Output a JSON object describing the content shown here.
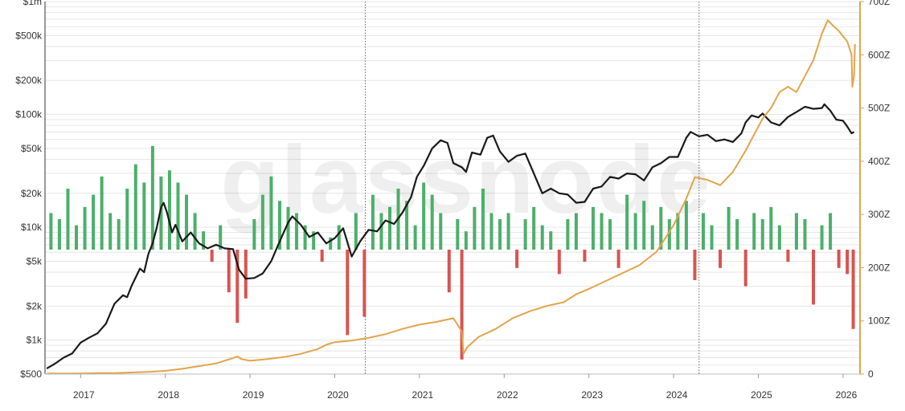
{
  "watermark": "glassnode",
  "colors": {
    "price": "#1a1a1a",
    "supply": "#e2a44a",
    "positive": "#4caf6b",
    "negative": "#d9534f",
    "grid": "#e6e6e6",
    "halving": "#666666"
  },
  "chart_data": {
    "type": "line",
    "y_left": {
      "scale": "log",
      "range": [
        500,
        1000000
      ],
      "ticks": [
        {
          "value": 500,
          "label": "$500"
        },
        {
          "value": 1000,
          "label": "$1k"
        },
        {
          "value": 2000,
          "label": "$2k"
        },
        {
          "value": 5000,
          "label": "$5k"
        },
        {
          "value": 10000,
          "label": "$10k"
        },
        {
          "value": 20000,
          "label": "$20k"
        },
        {
          "value": 50000,
          "label": "$50k"
        },
        {
          "value": 100000,
          "label": "$100k"
        },
        {
          "value": 200000,
          "label": "$200k"
        },
        {
          "value": 500000,
          "label": "$500k"
        },
        {
          "value": 1000000,
          "label": "$1m"
        }
      ]
    },
    "y_right": {
      "scale": "linear",
      "range": [
        0,
        700
      ],
      "ticks": [
        {
          "value": 0,
          "label": "0"
        },
        {
          "value": 100,
          "label": "100Z"
        },
        {
          "value": 200,
          "label": "200Z"
        },
        {
          "value": 300,
          "label": "300Z"
        },
        {
          "value": 400,
          "label": "400Z"
        },
        {
          "value": 500,
          "label": "500Z"
        },
        {
          "value": 600,
          "label": "600Z"
        },
        {
          "value": 700,
          "label": "700Z"
        }
      ]
    },
    "x_axis": {
      "range": [
        2016.58,
        2026.2
      ],
      "ticks": [
        {
          "value": 2017,
          "label": "2017"
        },
        {
          "value": 2018,
          "label": "2018"
        },
        {
          "value": 2019,
          "label": "2019"
        },
        {
          "value": 2020,
          "label": "2020"
        },
        {
          "value": 2021,
          "label": "2021"
        },
        {
          "value": 2022,
          "label": "2022"
        },
        {
          "value": 2023,
          "label": "2023"
        },
        {
          "value": 2024,
          "label": "2024"
        },
        {
          "value": 2025,
          "label": "2025"
        },
        {
          "value": 2026,
          "label": "2026"
        }
      ]
    },
    "halving_lines": [
      2020.36,
      2024.3
    ],
    "series": [
      {
        "key": "price",
        "axis": "left",
        "points": [
          [
            2016.6,
            560
          ],
          [
            2016.7,
            620
          ],
          [
            2016.8,
            700
          ],
          [
            2016.9,
            760
          ],
          [
            2017.0,
            950
          ],
          [
            2017.1,
            1050
          ],
          [
            2017.2,
            1150
          ],
          [
            2017.3,
            1400
          ],
          [
            2017.4,
            2100
          ],
          [
            2017.5,
            2500
          ],
          [
            2017.55,
            2400
          ],
          [
            2017.6,
            3000
          ],
          [
            2017.7,
            4300
          ],
          [
            2017.75,
            4000
          ],
          [
            2017.8,
            5800
          ],
          [
            2017.85,
            7200
          ],
          [
            2017.9,
            10000
          ],
          [
            2017.95,
            15000
          ],
          [
            2017.98,
            16500
          ],
          [
            2018.02,
            13500
          ],
          [
            2018.08,
            9000
          ],
          [
            2018.12,
            10500
          ],
          [
            2018.2,
            7500
          ],
          [
            2018.3,
            9000
          ],
          [
            2018.4,
            7200
          ],
          [
            2018.5,
            6500
          ],
          [
            2018.6,
            7000
          ],
          [
            2018.7,
            6500
          ],
          [
            2018.8,
            6400
          ],
          [
            2018.87,
            4200
          ],
          [
            2018.95,
            3500
          ],
          [
            2019.05,
            3550
          ],
          [
            2019.15,
            3900
          ],
          [
            2019.25,
            5000
          ],
          [
            2019.35,
            7500
          ],
          [
            2019.45,
            11000
          ],
          [
            2019.5,
            12500
          ],
          [
            2019.6,
            10500
          ],
          [
            2019.7,
            8200
          ],
          [
            2019.8,
            9000
          ],
          [
            2019.9,
            7200
          ],
          [
            2020.0,
            8000
          ],
          [
            2020.1,
            9800
          ],
          [
            2020.2,
            5500
          ],
          [
            2020.3,
            7500
          ],
          [
            2020.4,
            9500
          ],
          [
            2020.5,
            9200
          ],
          [
            2020.6,
            11500
          ],
          [
            2020.7,
            10700
          ],
          [
            2020.8,
            13500
          ],
          [
            2020.9,
            18500
          ],
          [
            2020.97,
            28000
          ],
          [
            2021.05,
            35000
          ],
          [
            2021.15,
            50000
          ],
          [
            2021.25,
            59000
          ],
          [
            2021.33,
            56000
          ],
          [
            2021.4,
            37000
          ],
          [
            2021.5,
            34000
          ],
          [
            2021.55,
            31000
          ],
          [
            2021.62,
            46000
          ],
          [
            2021.72,
            44000
          ],
          [
            2021.8,
            62000
          ],
          [
            2021.87,
            65000
          ],
          [
            2021.95,
            47000
          ],
          [
            2022.05,
            38000
          ],
          [
            2022.15,
            43000
          ],
          [
            2022.25,
            45000
          ],
          [
            2022.35,
            30000
          ],
          [
            2022.45,
            20000
          ],
          [
            2022.55,
            22000
          ],
          [
            2022.65,
            20000
          ],
          [
            2022.75,
            19500
          ],
          [
            2022.85,
            16500
          ],
          [
            2022.95,
            16800
          ],
          [
            2023.05,
            22000
          ],
          [
            2023.15,
            23000
          ],
          [
            2023.25,
            28000
          ],
          [
            2023.35,
            27000
          ],
          [
            2023.45,
            30000
          ],
          [
            2023.55,
            29500
          ],
          [
            2023.65,
            26000
          ],
          [
            2023.75,
            34000
          ],
          [
            2023.85,
            37000
          ],
          [
            2023.95,
            42000
          ],
          [
            2024.05,
            42000
          ],
          [
            2024.15,
            62000
          ],
          [
            2024.2,
            70000
          ],
          [
            2024.3,
            64000
          ],
          [
            2024.4,
            66000
          ],
          [
            2024.5,
            58000
          ],
          [
            2024.6,
            60000
          ],
          [
            2024.7,
            57000
          ],
          [
            2024.8,
            68000
          ],
          [
            2024.85,
            85000
          ],
          [
            2024.92,
            98000
          ],
          [
            2025.0,
            94000
          ],
          [
            2025.05,
            102000
          ],
          [
            2025.15,
            85000
          ],
          [
            2025.25,
            80000
          ],
          [
            2025.35,
            95000
          ],
          [
            2025.45,
            105000
          ],
          [
            2025.55,
            117000
          ],
          [
            2025.65,
            112000
          ],
          [
            2025.75,
            114000
          ],
          [
            2025.78,
            123000
          ],
          [
            2025.85,
            108000
          ],
          [
            2025.92,
            90000
          ],
          [
            2026.0,
            88000
          ],
          [
            2026.05,
            78000
          ],
          [
            2026.1,
            68000
          ],
          [
            2026.13,
            70000
          ]
        ]
      },
      {
        "key": "supply",
        "axis": "right",
        "points": [
          [
            2016.6,
            1
          ],
          [
            2016.8,
            1
          ],
          [
            2017.0,
            1
          ],
          [
            2017.2,
            2
          ],
          [
            2017.4,
            2
          ],
          [
            2017.6,
            3
          ],
          [
            2017.8,
            4
          ],
          [
            2018.0,
            6
          ],
          [
            2018.2,
            10
          ],
          [
            2018.4,
            15
          ],
          [
            2018.6,
            20
          ],
          [
            2018.8,
            30
          ],
          [
            2018.85,
            33
          ],
          [
            2018.9,
            28
          ],
          [
            2019.0,
            25
          ],
          [
            2019.2,
            28
          ],
          [
            2019.4,
            32
          ],
          [
            2019.6,
            38
          ],
          [
            2019.8,
            47
          ],
          [
            2019.9,
            55
          ],
          [
            2020.0,
            60
          ],
          [
            2020.2,
            63
          ],
          [
            2020.4,
            68
          ],
          [
            2020.6,
            75
          ],
          [
            2020.8,
            85
          ],
          [
            2021.0,
            93
          ],
          [
            2021.2,
            98
          ],
          [
            2021.4,
            105
          ],
          [
            2021.5,
            80
          ],
          [
            2021.52,
            38
          ],
          [
            2021.56,
            50
          ],
          [
            2021.7,
            70
          ],
          [
            2021.9,
            85
          ],
          [
            2022.1,
            105
          ],
          [
            2022.3,
            118
          ],
          [
            2022.5,
            128
          ],
          [
            2022.7,
            135
          ],
          [
            2022.85,
            150
          ],
          [
            2023.0,
            160
          ],
          [
            2023.2,
            175
          ],
          [
            2023.4,
            190
          ],
          [
            2023.6,
            205
          ],
          [
            2023.8,
            230
          ],
          [
            2024.0,
            280
          ],
          [
            2024.15,
            330
          ],
          [
            2024.25,
            370
          ],
          [
            2024.4,
            365
          ],
          [
            2024.55,
            355
          ],
          [
            2024.7,
            380
          ],
          [
            2024.85,
            420
          ],
          [
            2024.95,
            450
          ],
          [
            2025.05,
            480
          ],
          [
            2025.15,
            500
          ],
          [
            2025.25,
            530
          ],
          [
            2025.35,
            540
          ],
          [
            2025.45,
            530
          ],
          [
            2025.55,
            560
          ],
          [
            2025.65,
            590
          ],
          [
            2025.75,
            640
          ],
          [
            2025.82,
            665
          ],
          [
            2025.88,
            655
          ],
          [
            2025.95,
            645
          ],
          [
            2026.05,
            625
          ],
          [
            2026.1,
            600
          ],
          [
            2026.11,
            540
          ],
          [
            2026.13,
            560
          ],
          [
            2026.14,
            620
          ]
        ]
      },
      {
        "key": "net_change_bars",
        "axis": "overlay",
        "x": [
          2016.65,
          2016.75,
          2016.85,
          2016.95,
          2017.05,
          2017.15,
          2017.25,
          2017.35,
          2017.45,
          2017.55,
          2017.65,
          2017.75,
          2017.85,
          2017.95,
          2018.05,
          2018.15,
          2018.25,
          2018.35,
          2018.45,
          2018.55,
          2018.65,
          2018.75,
          2018.85,
          2018.95,
          2019.05,
          2019.15,
          2019.25,
          2019.35,
          2019.45,
          2019.55,
          2019.65,
          2019.75,
          2019.85,
          2019.95,
          2020.05,
          2020.15,
          2020.25,
          2020.35,
          2020.45,
          2020.55,
          2020.65,
          2020.75,
          2020.85,
          2020.95,
          2021.05,
          2021.15,
          2021.25,
          2021.35,
          2021.45,
          2021.5,
          2021.55,
          2021.65,
          2021.75,
          2021.85,
          2021.95,
          2022.05,
          2022.15,
          2022.25,
          2022.35,
          2022.45,
          2022.55,
          2022.65,
          2022.75,
          2022.85,
          2022.95,
          2023.05,
          2023.15,
          2023.25,
          2023.35,
          2023.45,
          2023.55,
          2023.65,
          2023.75,
          2023.85,
          2023.95,
          2024.05,
          2024.15,
          2024.25,
          2024.35,
          2024.45,
          2024.55,
          2024.65,
          2024.75,
          2024.85,
          2024.95,
          2025.05,
          2025.15,
          2025.25,
          2025.35,
          2025.45,
          2025.55,
          2025.65,
          2025.75,
          2025.85,
          2025.95,
          2026.05,
          2026.12
        ],
        "values": [
          0.3,
          0.25,
          0.5,
          0.2,
          0.35,
          0.45,
          0.6,
          0.3,
          0.25,
          0.5,
          0.7,
          0.55,
          0.85,
          0.6,
          0.65,
          0.55,
          0.45,
          0.3,
          0.15,
          -0.1,
          0.2,
          -0.35,
          -0.6,
          -0.4,
          0.25,
          0.45,
          0.6,
          0.4,
          0.35,
          0.3,
          0.2,
          0.15,
          -0.1,
          0.1,
          0.2,
          -0.7,
          0.3,
          -0.55,
          0.45,
          0.3,
          0.35,
          0.5,
          0.4,
          0.2,
          0.55,
          0.45,
          0.3,
          -0.35,
          0.25,
          -0.9,
          0.15,
          0.35,
          0.5,
          0.3,
          0.25,
          0.3,
          -0.15,
          0.25,
          0.35,
          0.2,
          0.15,
          -0.2,
          0.25,
          0.3,
          -0.1,
          0.35,
          0.3,
          0.25,
          -0.15,
          0.45,
          0.3,
          0.4,
          0.2,
          0.35,
          0.25,
          0.3,
          0.4,
          -0.25,
          0.3,
          0.2,
          -0.15,
          0.35,
          0.25,
          -0.3,
          0.3,
          0.25,
          0.35,
          0.2,
          -0.1,
          0.3,
          0.25,
          -0.45,
          0.2,
          0.3,
          -0.15,
          -0.2,
          -0.65
        ]
      }
    ]
  }
}
